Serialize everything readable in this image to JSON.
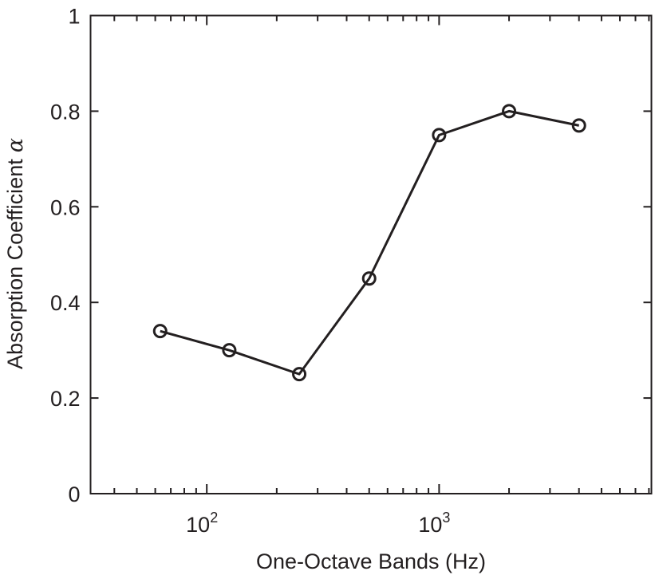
{
  "chart_data": {
    "type": "line",
    "title": "",
    "xlabel": "One-Octave Bands (Hz)",
    "ylabel": "Absorption Coefficient",
    "ylabel_symbol": "α",
    "xscale": "log",
    "xlim": [
      31.6,
      8200
    ],
    "ylim": [
      0,
      1
    ],
    "grid": false,
    "legend": null,
    "x_ticks": [
      {
        "value": 100,
        "base": "10",
        "exp": "2"
      },
      {
        "value": 1000,
        "base": "10",
        "exp": "3"
      }
    ],
    "y_ticks": [
      {
        "value": 0,
        "label": "0"
      },
      {
        "value": 0.2,
        "label": "0.2"
      },
      {
        "value": 0.4,
        "label": "0.4"
      },
      {
        "value": 0.6,
        "label": "0.6"
      },
      {
        "value": 0.8,
        "label": "0.8"
      },
      {
        "value": 1,
        "label": "1"
      }
    ],
    "x": [
      63,
      125,
      250,
      500,
      1000,
      2000,
      4000
    ],
    "series": [
      {
        "name": "Absorption coefficient",
        "values": [
          0.34,
          0.3,
          0.25,
          0.45,
          0.75,
          0.8,
          0.77
        ],
        "marker": "circle-open",
        "color": "#231f20"
      }
    ]
  },
  "style": {
    "line_color": "#231f20",
    "axis_color": "#231f20"
  }
}
